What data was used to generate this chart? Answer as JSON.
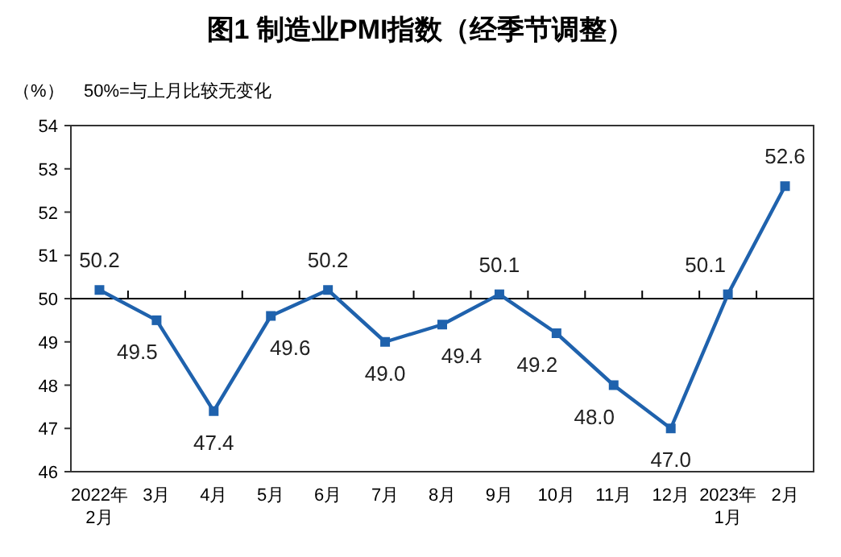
{
  "chart_data": {
    "type": "line",
    "title": "图1 制造业PMI指数（经季节调整）",
    "ylabel": "（%）",
    "annotations": [
      "50%=与上月比较无变化"
    ],
    "categories": [
      "2022年\n2月",
      "3月",
      "4月",
      "5月",
      "6月",
      "7月",
      "8月",
      "9月",
      "10月",
      "11月",
      "12月",
      "2023年\n1月",
      "2月"
    ],
    "series": [
      {
        "color": "#1f62ad",
        "values": [
          50.2,
          49.5,
          47.4,
          49.6,
          50.2,
          49.0,
          49.4,
          50.1,
          49.2,
          48.0,
          47.0,
          50.1,
          52.6
        ],
        "value_labels": [
          "50.2",
          "49.5",
          "47.4",
          "49.6",
          "50.2",
          "49.0",
          "49.4",
          "50.1",
          "49.2",
          "48.0",
          "47.0",
          "50.1",
          "52.6"
        ]
      }
    ],
    "ylim": [
      46,
      54
    ],
    "yticks": [
      46,
      47,
      48,
      49,
      50,
      51,
      52,
      53,
      54
    ],
    "ref_lines": [
      {
        "axis": "y",
        "value": 50,
        "color": "#000000"
      }
    ],
    "marker": "square",
    "grid": false
  }
}
